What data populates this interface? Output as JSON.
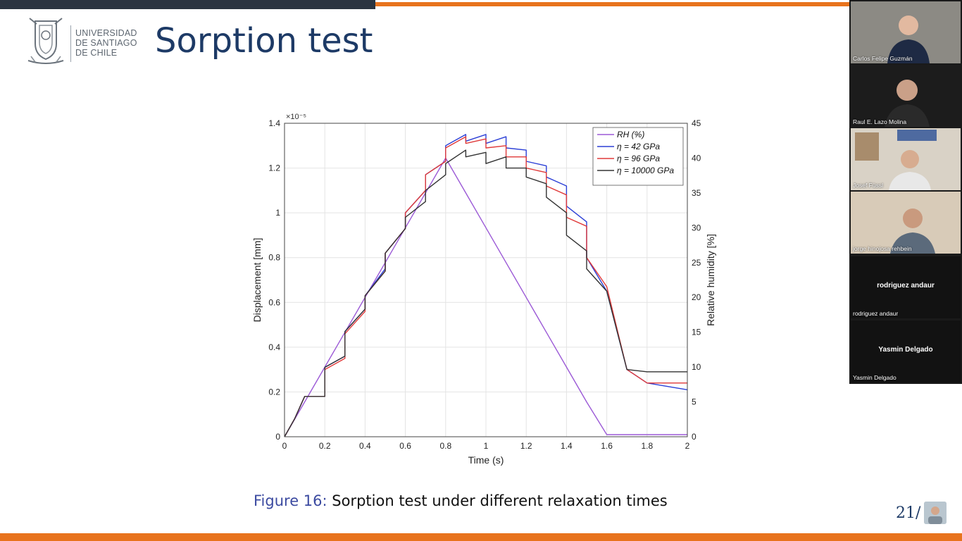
{
  "slide": {
    "university_lines": [
      "UNIVERSIDAD",
      "DE SANTIAGO",
      "DE CHILE"
    ],
    "title": "Sorption test",
    "caption_label": "Figure 16:",
    "caption_text": " Sorption test under different relaxation times",
    "page_number": "21/",
    "colors": {
      "title": "#1d3a66",
      "accent_orange": "#e8731d",
      "top_bar_dark": "#2b3440"
    }
  },
  "chart_data": {
    "type": "line",
    "xlabel": "Time (s)",
    "ylabel": "Displacement [mm]",
    "y2label": "Relative humidity [%]",
    "y_exponent_label": "×10⁻⁵",
    "xlim": [
      0,
      2
    ],
    "ylim": [
      0,
      1.4
    ],
    "y2lim": [
      0,
      45
    ],
    "grid": true,
    "legend_position": "top-right",
    "x_ticks": [
      "0",
      "0.2",
      "0.4",
      "0.6",
      "0.8",
      "1",
      "1.2",
      "1.4",
      "1.6",
      "1.8",
      "2"
    ],
    "y_ticks": [
      "0",
      "0.2",
      "0.4",
      "0.6",
      "0.8",
      "1",
      "1.2",
      "1.4"
    ],
    "y2_ticks": [
      "0",
      "5",
      "10",
      "15",
      "20",
      "25",
      "30",
      "35",
      "40",
      "45"
    ],
    "series": [
      {
        "name": "RH (%)",
        "axis": "right",
        "color": "#9b59d6",
        "x": [
          0,
          0.1,
          0.1,
          0.2,
          0.2,
          0.3,
          0.3,
          0.4,
          0.4,
          0.5,
          0.5,
          0.6,
          0.6,
          0.7,
          0.7,
          0.8,
          0.8,
          0.9,
          0.9,
          1.0,
          1.0,
          1.1,
          1.1,
          1.2,
          1.2,
          1.3,
          1.3,
          1.4,
          1.4,
          1.5,
          1.5,
          1.6,
          1.6,
          1.7,
          2.0
        ],
        "values": [
          0,
          5,
          5,
          10,
          10,
          15,
          15,
          20,
          20,
          25,
          25,
          30,
          30,
          35,
          35,
          40,
          40,
          35,
          35,
          30,
          30,
          25,
          25,
          20,
          20,
          15,
          15,
          10,
          10,
          5,
          5,
          0.3,
          0.3,
          0.3,
          0.3
        ]
      },
      {
        "name": "η = 42 GPa",
        "axis": "left",
        "color": "#2b3fd6",
        "x": [
          0,
          0.05,
          0.1,
          0.2,
          0.2,
          0.3,
          0.3,
          0.4,
          0.4,
          0.5,
          0.5,
          0.6,
          0.6,
          0.7,
          0.7,
          0.8,
          0.8,
          0.9,
          0.9,
          1.0,
          1.0,
          1.1,
          1.1,
          1.2,
          1.2,
          1.3,
          1.3,
          1.4,
          1.4,
          1.5,
          1.5,
          1.6,
          1.7,
          1.8,
          2.0
        ],
        "values": [
          0,
          0.08,
          0.18,
          0.18,
          0.31,
          0.36,
          0.47,
          0.57,
          0.63,
          0.75,
          0.82,
          0.93,
          1.0,
          1.1,
          1.17,
          1.23,
          1.3,
          1.35,
          1.32,
          1.35,
          1.31,
          1.34,
          1.29,
          1.28,
          1.23,
          1.21,
          1.16,
          1.12,
          1.03,
          0.96,
          0.8,
          0.65,
          0.3,
          0.24,
          0.21
        ]
      },
      {
        "name": "η = 96 GPa",
        "axis": "left",
        "color": "#e03a3a",
        "x": [
          0,
          0.05,
          0.1,
          0.2,
          0.2,
          0.3,
          0.3,
          0.4,
          0.4,
          0.5,
          0.5,
          0.6,
          0.6,
          0.7,
          0.7,
          0.8,
          0.8,
          0.9,
          0.9,
          1.0,
          1.0,
          1.1,
          1.1,
          1.2,
          1.2,
          1.3,
          1.3,
          1.4,
          1.4,
          1.5,
          1.5,
          1.6,
          1.7,
          1.8,
          2.0
        ],
        "values": [
          0,
          0.08,
          0.18,
          0.18,
          0.3,
          0.35,
          0.46,
          0.56,
          0.63,
          0.74,
          0.82,
          0.93,
          1.0,
          1.1,
          1.17,
          1.23,
          1.29,
          1.34,
          1.31,
          1.33,
          1.29,
          1.3,
          1.25,
          1.25,
          1.2,
          1.18,
          1.12,
          1.08,
          0.98,
          0.94,
          0.8,
          0.67,
          0.3,
          0.24,
          0.24
        ]
      },
      {
        "name": "η = 10000 GPa",
        "axis": "left",
        "color": "#333333",
        "x": [
          0,
          0.05,
          0.1,
          0.2,
          0.2,
          0.3,
          0.3,
          0.4,
          0.4,
          0.5,
          0.5,
          0.6,
          0.6,
          0.7,
          0.7,
          0.8,
          0.8,
          0.9,
          0.9,
          1.0,
          1.0,
          1.1,
          1.1,
          1.2,
          1.2,
          1.3,
          1.3,
          1.4,
          1.4,
          1.5,
          1.5,
          1.6,
          1.7,
          1.8,
          2.0
        ],
        "values": [
          0,
          0.08,
          0.18,
          0.18,
          0.31,
          0.36,
          0.47,
          0.57,
          0.63,
          0.74,
          0.82,
          0.93,
          0.98,
          1.05,
          1.1,
          1.17,
          1.22,
          1.28,
          1.25,
          1.27,
          1.22,
          1.25,
          1.2,
          1.2,
          1.16,
          1.13,
          1.07,
          1.0,
          0.9,
          0.83,
          0.75,
          0.65,
          0.3,
          0.29,
          0.29
        ]
      }
    ]
  },
  "participants": [
    {
      "name": "Carlos Felipe Guzmán",
      "type": "video",
      "bg": "#8c8a84",
      "skin": "#e2b9a0",
      "shirt": "#1e2a44"
    },
    {
      "name": "Raul E. Lazo Molina",
      "type": "video",
      "bg": "#1c1c1c",
      "skin": "#caa088",
      "shirt": "#2a2a2a"
    },
    {
      "name": "Josef Füssl",
      "type": "video",
      "bg": "#d9d2c6",
      "skin": "#d7ac90",
      "shirt": "#e8e8e8"
    },
    {
      "name": "jorge hinojosa rehbein",
      "type": "video",
      "bg": "#d8cbb8",
      "skin": "#c99a7e",
      "shirt": "#5b6a7b"
    },
    {
      "name": "rodriguez andaur",
      "label": "rodriguez andaur",
      "type": "audio"
    },
    {
      "name": "Yasmin Delgado",
      "label": "Yasmin Delgado",
      "type": "audio"
    }
  ]
}
